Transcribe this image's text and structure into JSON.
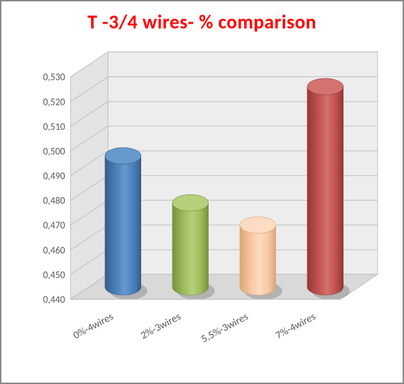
{
  "chart": {
    "type": "3d-cylinder-bar",
    "title": "T -3/4 wires- % comparison",
    "title_color": "#ff0000",
    "title_fontsize": 28,
    "categories": [
      "0%-4wires",
      "2%-3wires",
      "5,5%-3wires",
      "7%-4wires"
    ],
    "values": [
      0.493,
      0.474,
      0.465,
      0.521
    ],
    "ylim": [
      0.44,
      0.53
    ],
    "ytick_step_display": 0.01,
    "ytick_labels": [
      "0,440",
      "0,450",
      "0,460",
      "0,470",
      "0,480",
      "0,490",
      "0,500",
      "0,510",
      "0,520",
      "0,530"
    ],
    "bar_colors": [
      "#4a7ebb",
      "#9bbb59",
      "#f6c7a0",
      "#c0504d"
    ],
    "bar_top_colors": [
      "#6699cc",
      "#b5d07a",
      "#fcdcc2",
      "#d47270"
    ],
    "bar_shadow_colors": [
      "#385d8a",
      "#76923c",
      "#d9a679",
      "#953735"
    ],
    "floor_color": "#d9d9d9",
    "floor_edge": "#bfbfbf",
    "back_wall_color": "#ededed",
    "side_wall_color": "#e4e4e4",
    "gridline_color": "#bfbfbf",
    "label_fontsize": 15,
    "tick_fontsize": 14,
    "tick_color": "#595959",
    "label_color": "#595959",
    "decimal_separator": ","
  }
}
